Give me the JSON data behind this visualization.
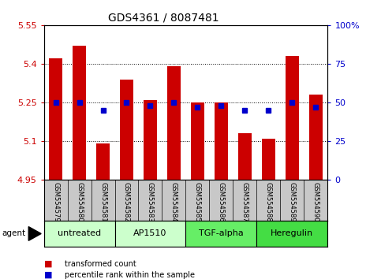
{
  "title": "GDS4361 / 8087481",
  "samples": [
    "GSM554579",
    "GSM554580",
    "GSM554581",
    "GSM554582",
    "GSM554583",
    "GSM554584",
    "GSM554585",
    "GSM554586",
    "GSM554587",
    "GSM554588",
    "GSM554589",
    "GSM554590"
  ],
  "bar_values": [
    5.42,
    5.47,
    5.09,
    5.34,
    5.26,
    5.39,
    5.25,
    5.25,
    5.13,
    5.11,
    5.43,
    5.28
  ],
  "percentile_values": [
    50,
    50,
    45,
    50,
    48,
    50,
    47,
    48,
    45,
    45,
    50,
    47
  ],
  "bar_bottom": 4.95,
  "ylim_left": [
    4.95,
    5.55
  ],
  "ylim_right": [
    0,
    100
  ],
  "yticks_left": [
    4.95,
    5.1,
    5.25,
    5.4,
    5.55
  ],
  "ytick_labels_left": [
    "4.95",
    "5.1",
    "5.25",
    "5.4",
    "5.55"
  ],
  "yticks_right": [
    0,
    25,
    50,
    75,
    100
  ],
  "ytick_labels_right": [
    "0",
    "25",
    "50",
    "75",
    "100%"
  ],
  "hlines": [
    5.1,
    5.25,
    5.4
  ],
  "bar_color": "#cc0000",
  "dot_color": "#0000cc",
  "bar_width": 0.55,
  "agent_groups": [
    {
      "label": "untreated",
      "start": 0,
      "end": 2,
      "color": "#ccffcc"
    },
    {
      "label": "AP1510",
      "start": 3,
      "end": 5,
      "color": "#ccffcc"
    },
    {
      "label": "TGF-alpha",
      "start": 6,
      "end": 8,
      "color": "#66ee66"
    },
    {
      "label": "Heregulin",
      "start": 9,
      "end": 11,
      "color": "#44dd44"
    }
  ],
  "legend_items": [
    {
      "label": "transformed count",
      "color": "#cc0000"
    },
    {
      "label": "percentile rank within the sample",
      "color": "#0000cc"
    }
  ],
  "bg_color": "#ffffff",
  "plot_bg_color": "#ffffff",
  "left_tick_color": "#cc0000",
  "right_tick_color": "#0000cc",
  "title_fontsize": 10,
  "tick_fontsize": 8,
  "sample_label_fontsize": 6,
  "agent_fontsize": 8,
  "sample_tick_area_color": "#c8c8c8",
  "grid_color": "#000000",
  "spine_color": "#000000"
}
